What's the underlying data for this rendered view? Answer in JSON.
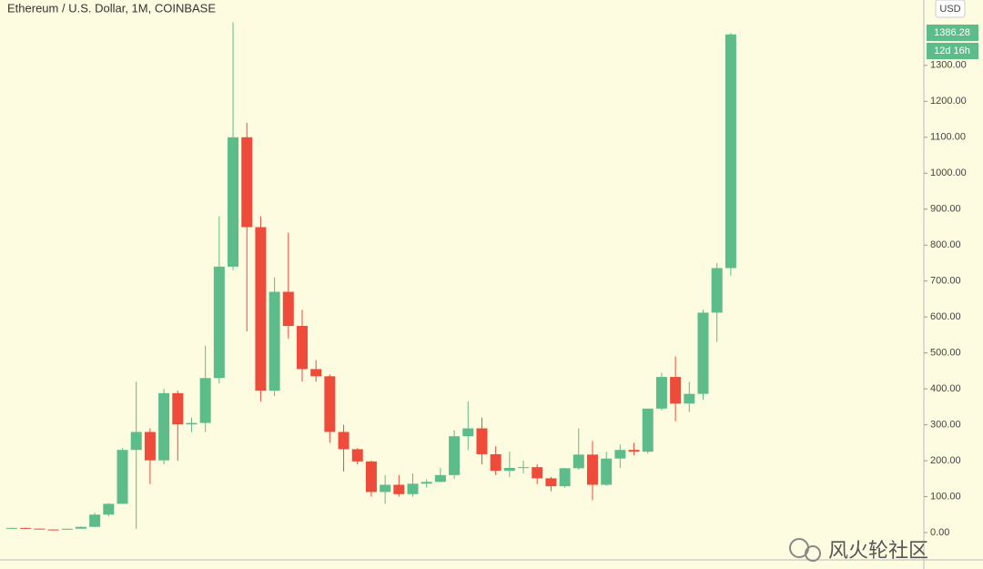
{
  "chart_data": {
    "type": "candlestick",
    "title": "Ethereum / U.S. Dollar, 1M, COINBASE",
    "currency": "USD",
    "countdown": "12d 16h",
    "watermark": "风火轮社区",
    "up_color": "#5cbd8b",
    "down_color": "#ee4b3a",
    "background": "#fdfbe0",
    "grid": false,
    "open": [
      12,
      13,
      11,
      8.6,
      8,
      10.7,
      16,
      50,
      80,
      230,
      280,
      201,
      388,
      301,
      305,
      430,
      740,
      1100,
      850,
      395,
      670,
      575,
      455,
      435,
      280,
      232,
      198,
      113,
      133,
      107,
      136,
      141,
      160,
      268,
      290,
      218,
      172,
      180,
      182,
      151,
      129,
      179,
      217,
      133,
      206,
      230,
      225,
      345,
      433,
      359,
      386,
      612,
      736
    ],
    "high": [
      14,
      14,
      11.5,
      9,
      11,
      17,
      55,
      82,
      235,
      420,
      290,
      400,
      395,
      320,
      520,
      880,
      1420,
      1140,
      880,
      710,
      835,
      620,
      480,
      440,
      300,
      235,
      200,
      160,
      160,
      165,
      148,
      180,
      285,
      365,
      320,
      240,
      225,
      200,
      190,
      155,
      180,
      290,
      255,
      225,
      245,
      250,
      345,
      445,
      490,
      420,
      620,
      750,
      1390
    ],
    "low": [
      11,
      10,
      8.5,
      6,
      8,
      10.5,
      15,
      45,
      80,
      10,
      135,
      190,
      200,
      280,
      280,
      415,
      730,
      560,
      365,
      380,
      540,
      420,
      420,
      250,
      170,
      190,
      100,
      80,
      100,
      100,
      125,
      140,
      150,
      230,
      190,
      160,
      155,
      165,
      135,
      115,
      125,
      175,
      90,
      130,
      180,
      215,
      220,
      340,
      310,
      335,
      370,
      530,
      715
    ],
    "close": [
      13,
      11,
      8.6,
      8,
      10.7,
      16,
      50,
      80,
      230,
      280,
      201,
      388,
      301,
      305,
      430,
      740,
      1100,
      850,
      395,
      670,
      575,
      455,
      435,
      280,
      232,
      198,
      113,
      133,
      107,
      136,
      141,
      160,
      268,
      290,
      218,
      172,
      180,
      182,
      151,
      129,
      179,
      217,
      133,
      206,
      230,
      225,
      345,
      433,
      359,
      386,
      612,
      736,
      1386.28
    ],
    "ylim": [
      -76,
      1482
    ],
    "yticks": [
      {
        "value": 0,
        "label": "0.00"
      },
      {
        "value": 100,
        "label": "100.00"
      },
      {
        "value": 200,
        "label": "200.00"
      },
      {
        "value": 300,
        "label": "300.00"
      },
      {
        "value": 400,
        "label": "400.00"
      },
      {
        "value": 500,
        "label": "500.00"
      },
      {
        "value": 600,
        "label": "600.00"
      },
      {
        "value": 700,
        "label": "700.00"
      },
      {
        "value": 800,
        "label": "800.00"
      },
      {
        "value": 900,
        "label": "900.00"
      },
      {
        "value": 1000,
        "label": "1000.00"
      },
      {
        "value": 1100,
        "label": "1100.00"
      },
      {
        "value": 1200,
        "label": "1200.00"
      },
      {
        "value": 1300,
        "label": "1300.00"
      }
    ]
  }
}
